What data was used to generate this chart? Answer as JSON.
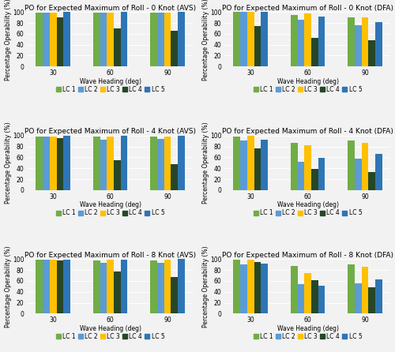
{
  "titles": [
    "PO for Expected Maximum of Roll - 0 Knot (AVS)",
    "PO for Expected Maximum of Roll - 0 Knot (DFA)",
    "PO for Expected Maximum of Roll - 4 Knot (AVS)",
    "PO for Expected Maximum of Roll - 4 Knot (DFA)",
    "PO for Expected Maximum of Roll - 8 Knot (AVS)",
    "PO for Expected Maximum of Roll - 8 Knot (DFA)"
  ],
  "xlabel": "Wave Heading (deg)",
  "ylabel": "Percentage Operability (%)",
  "x_ticks": [
    "30",
    "60",
    "90"
  ],
  "legend_labels": [
    "LC 1",
    "LC 2",
    "LC 3",
    "LC 4",
    "LC 5"
  ],
  "colors": [
    "#70ad47",
    "#5b9bd5",
    "#ffc000",
    "#264727",
    "#2e75b6"
  ],
  "data": [
    [
      [
        99,
        99,
        99,
        91,
        100
      ],
      [
        99,
        99,
        99,
        70,
        100
      ],
      [
        99,
        99,
        99,
        65,
        100
      ]
    ],
    [
      [
        100,
        100,
        100,
        75,
        100
      ],
      [
        95,
        86,
        97,
        52,
        92
      ],
      [
        90,
        76,
        91,
        48,
        81
      ]
    ],
    [
      [
        99,
        99,
        99,
        95,
        100
      ],
      [
        99,
        92,
        99,
        55,
        100
      ],
      [
        99,
        94,
        99,
        48,
        100
      ]
    ],
    [
      [
        99,
        91,
        100,
        76,
        93
      ],
      [
        87,
        52,
        82,
        39,
        59
      ],
      [
        91,
        58,
        87,
        33,
        67
      ]
    ],
    [
      [
        99,
        99,
        99,
        98,
        99
      ],
      [
        98,
        93,
        99,
        77,
        99
      ],
      [
        97,
        93,
        99,
        67,
        100
      ]
    ],
    [
      [
        99,
        90,
        99,
        95,
        92
      ],
      [
        87,
        54,
        75,
        61,
        51
      ],
      [
        90,
        56,
        86,
        49,
        63
      ]
    ]
  ],
  "ylim": [
    0,
    100
  ],
  "yticks": [
    0,
    20,
    40,
    60,
    80,
    100
  ],
  "background_color": "#f2f2f2",
  "grid_color": "#ffffff",
  "bar_width": 0.12,
  "title_fontsize": 6.5,
  "axis_fontsize": 5.5,
  "tick_fontsize": 5.5,
  "legend_fontsize": 5.5
}
